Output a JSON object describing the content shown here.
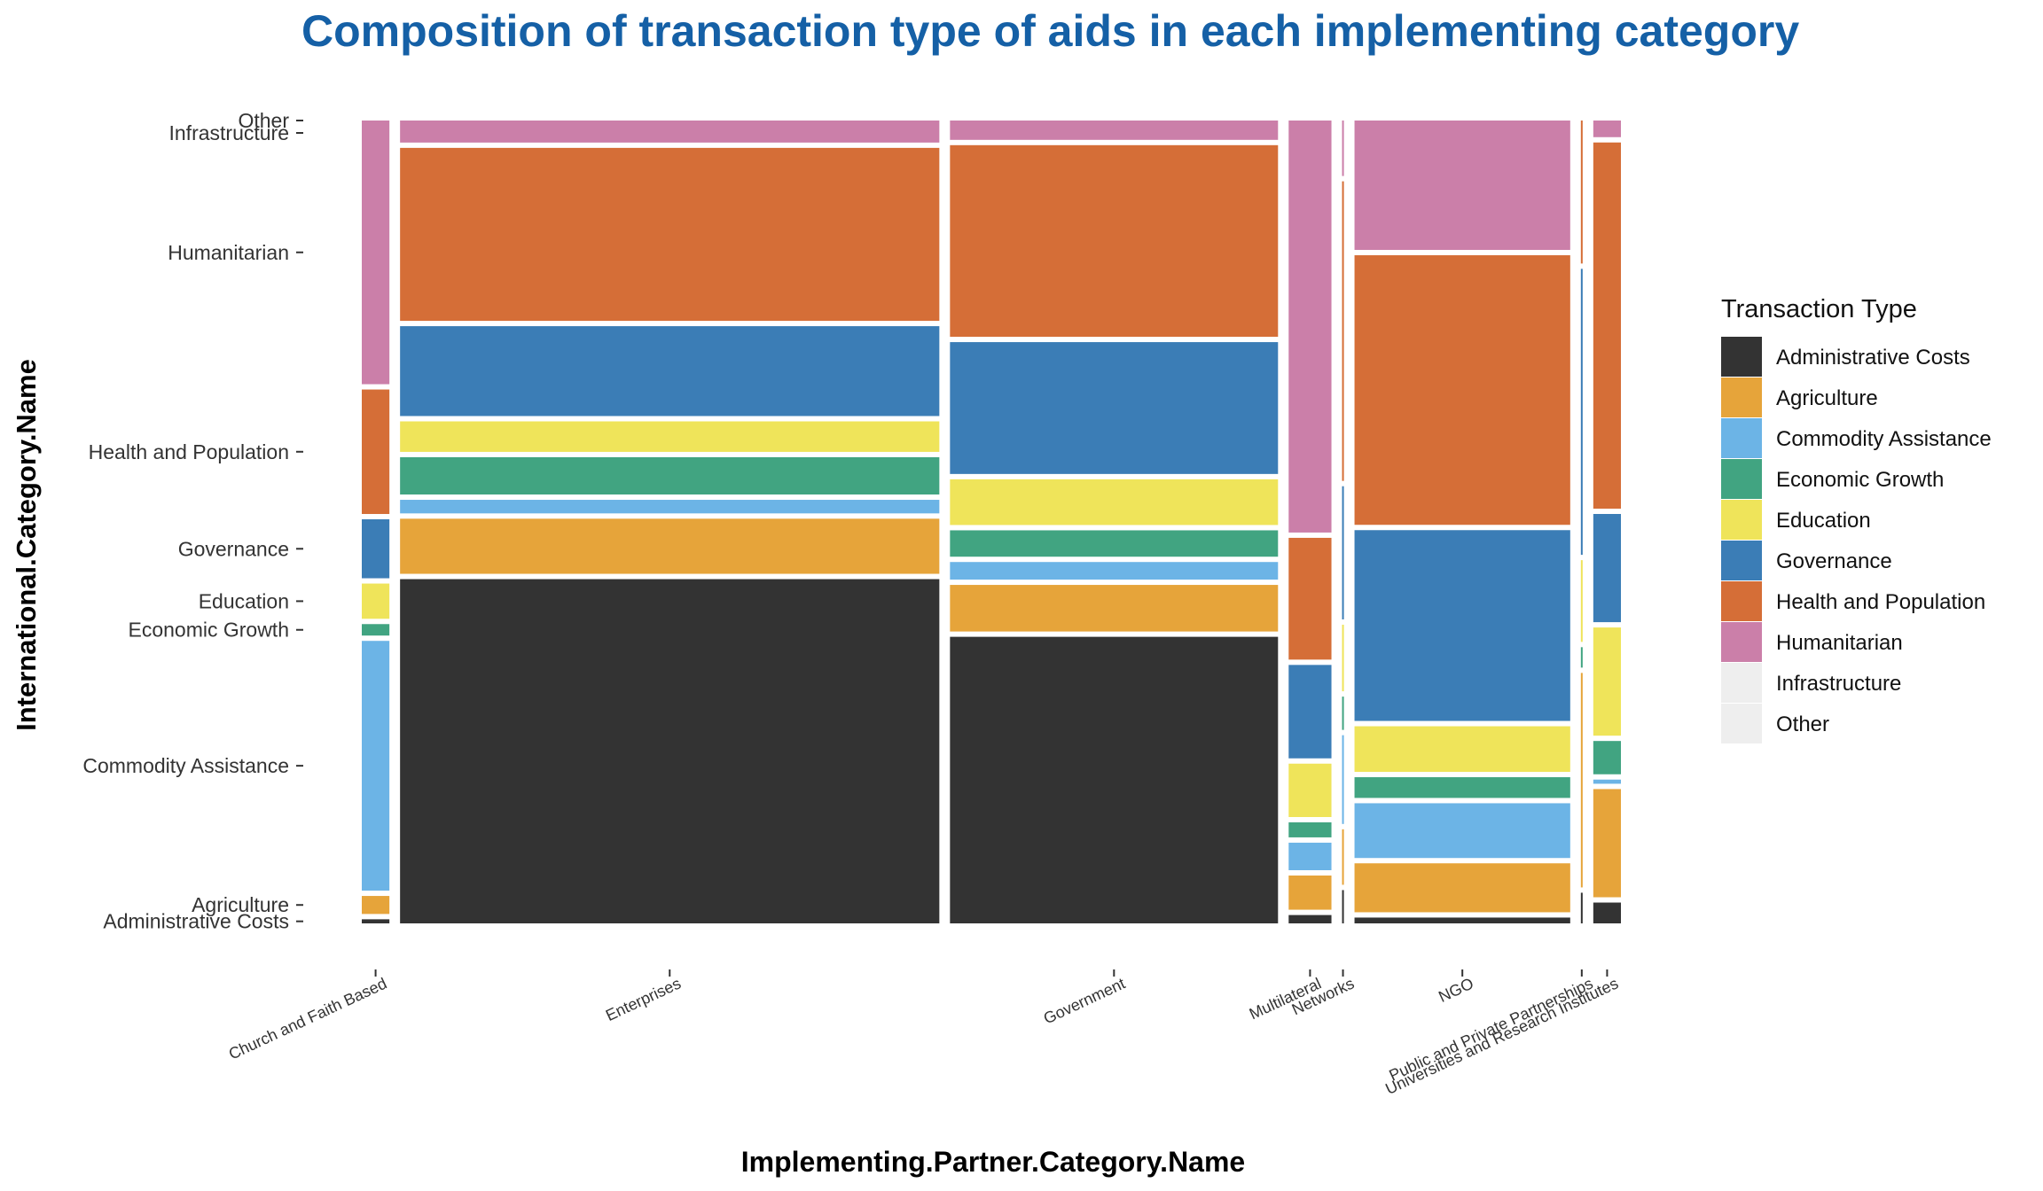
{
  "chart_data": {
    "type": "mosaic",
    "title": "Composition of transaction type of aids in each implementing category",
    "xlabel": "Implementing.Partner.Category.Name",
    "ylabel": "International.Category.Name",
    "legend_title": "Transaction Type",
    "legend_position": "right",
    "grid": false,
    "x_categories": [
      "Church and Faith Based",
      "Enterprises",
      "Government",
      "Multilateral",
      "Networks",
      "NGO",
      "Public and Private Partnerships",
      "Universities and Research Institutes"
    ],
    "x_widths": [
      0.031,
      0.605,
      0.368,
      0.048,
      0.002,
      0.242,
      0.002,
      0.031
    ],
    "y_tick_labels": [
      "Administrative Costs",
      "Agriculture",
      "Commodity Assistance",
      "Economic Growth",
      "Education",
      "Governance",
      "Health and Population",
      "Humanitarian",
      "Infrastructure",
      "Other"
    ],
    "transaction_types": [
      {
        "name": "Administrative Costs",
        "color": "#333333"
      },
      {
        "name": "Agriculture",
        "color": "#e6a43a"
      },
      {
        "name": "Commodity Assistance",
        "color": "#6cb4e6"
      },
      {
        "name": "Economic Growth",
        "color": "#41a481"
      },
      {
        "name": "Education",
        "color": "#efe45a"
      },
      {
        "name": "Governance",
        "color": "#3b7db6"
      },
      {
        "name": "Health and Population",
        "color": "#d56e37"
      },
      {
        "name": "Humanitarian",
        "color": "#cb7fa9"
      },
      {
        "name": "Infrastructure",
        "color": "#eeeeee"
      },
      {
        "name": "Other",
        "color": "#eeeeee"
      }
    ],
    "shares": {
      "Church and Faith Based": [
        0.005,
        0.022,
        0.305,
        0.014,
        0.043,
        0.072,
        0.152,
        0.322,
        0.0,
        0.0
      ],
      "Enterprises": [
        0.406,
        0.065,
        0.016,
        0.044,
        0.036,
        0.106,
        0.204,
        0.026,
        0.0,
        0.0
      ],
      "Government": [
        0.326,
        0.053,
        0.02,
        0.03,
        0.052,
        0.15,
        0.218,
        0.022,
        0.0,
        0.0
      ],
      "Multilateral": [
        0.01,
        0.041,
        0.033,
        0.018,
        0.064,
        0.112,
        0.146,
        0.494,
        0.0,
        0.0
      ],
      "Networks": [
        0.03,
        0.05,
        0.08,
        0.03,
        0.06,
        0.12,
        0.27,
        0.05,
        0.0,
        0.0
      ],
      "NGO": [
        0.007,
        0.059,
        0.066,
        0.025,
        0.055,
        0.23,
        0.325,
        0.156,
        0.0,
        0.0
      ],
      "Public and Private Partnerships": [
        0.03,
        0.21,
        0.0,
        0.02,
        0.08,
        0.28,
        0.14,
        0.0,
        0.0,
        0.0
      ],
      "Universities and Research Institutes": [
        0.025,
        0.13,
        0.005,
        0.04,
        0.13,
        0.13,
        0.44,
        0.02,
        0.0,
        0.0
      ]
    }
  }
}
